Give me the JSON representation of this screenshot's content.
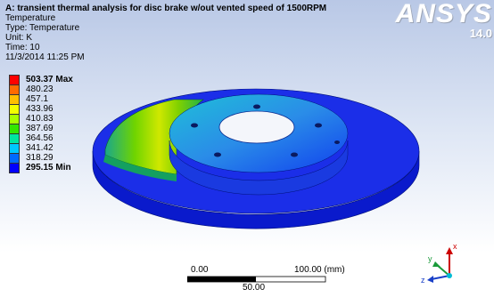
{
  "header": {
    "title": "A: transient  thermal analysis for disc brake w/out vented   speed of 1500RPM",
    "lines": [
      "Temperature",
      "Type: Temperature",
      "Unit: K",
      "Time: 10",
      "11/3/2014 11:25 PM"
    ]
  },
  "logo": {
    "brand": "ANSYS",
    "version": "14.0"
  },
  "legend": [
    {
      "label": "503.37 Max",
      "color": "#ff0000",
      "bold": true
    },
    {
      "label": "480.23",
      "color": "#ff6a00"
    },
    {
      "label": "457.1",
      "color": "#ffbf00"
    },
    {
      "label": "433.96",
      "color": "#f2ff00"
    },
    {
      "label": "410.83",
      "color": "#a8ff00"
    },
    {
      "label": "387.69",
      "color": "#33e600"
    },
    {
      "label": "364.56",
      "color": "#00e6a0"
    },
    {
      "label": "341.42",
      "color": "#00c8ff"
    },
    {
      "label": "318.29",
      "color": "#006aff"
    },
    {
      "label": "295.15 Min",
      "color": "#0000ff",
      "bold": true
    }
  ],
  "scale": {
    "left": "0.00",
    "right": "100.00 (mm)",
    "mid": "50.00"
  },
  "triad": {
    "x": "x",
    "y": "y",
    "z": "z"
  }
}
